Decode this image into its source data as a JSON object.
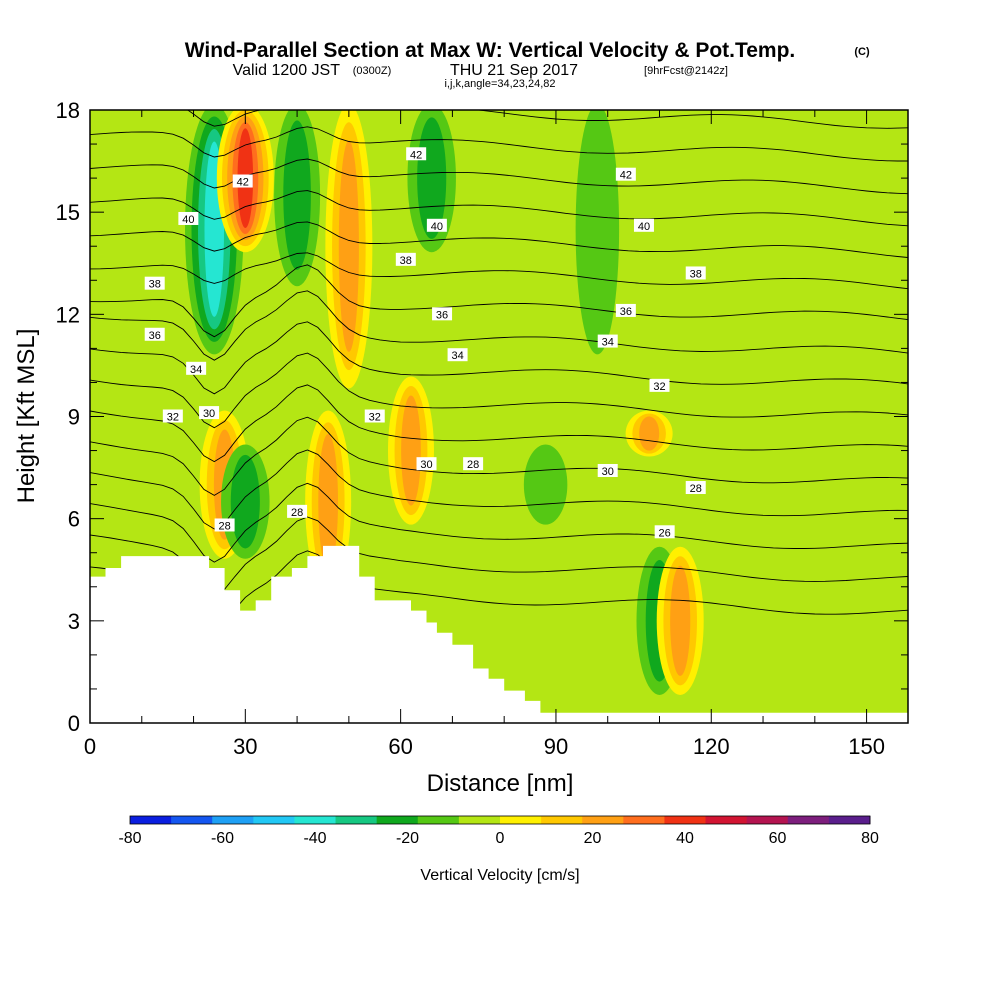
{
  "chart_data": {
    "type": "heatmap",
    "title": {
      "main": "Wind-Parallel Section at Max W: Vertical Velocity & Pot.Temp.",
      "copyright": "(C)",
      "valid_prefix": "Valid 1200 JST",
      "valid_z": "(0300Z)",
      "valid_date": "THU 21 Sep 2017",
      "forecast": "[9hrFcst@2142z]",
      "indices": "i,j,k,angle=34,23,24,82"
    },
    "xlabel": "Distance [nm]",
    "ylabel": "Height [Kft MSL]",
    "xlim": [
      0,
      158
    ],
    "ylim": [
      0,
      18
    ],
    "x_ticks": [
      0,
      30,
      60,
      90,
      120,
      150
    ],
    "y_ticks": [
      0,
      3,
      6,
      9,
      12,
      15,
      18
    ],
    "colorbar": {
      "label": "Vertical Velocity [cm/s]",
      "ticks": [
        -80,
        -60,
        -40,
        -20,
        0,
        20,
        40,
        60,
        80
      ],
      "bounds": [
        -80,
        80
      ],
      "colors": [
        "#0a1ee0",
        "#1456f0",
        "#1ea0f5",
        "#22c8f5",
        "#25e6d2",
        "#16c882",
        "#10a81e",
        "#55c814",
        "#b4e614",
        "#fff000",
        "#ffc800",
        "#ffa014",
        "#ff6e1e",
        "#f03214",
        "#d21432",
        "#b41450",
        "#7d1e7d",
        "#5a1e8c"
      ]
    },
    "vertical_velocity_features": [
      {
        "x": 24,
        "y_range": [
          11,
          18
        ],
        "w": -45
      },
      {
        "x": 30,
        "y_range": [
          14,
          18
        ],
        "w": 42
      },
      {
        "x": 40,
        "y_range": [
          13,
          18
        ],
        "w": -20
      },
      {
        "x": 26,
        "y_range": [
          5,
          9
        ],
        "w": 28
      },
      {
        "x": 30,
        "y_range": [
          5,
          8
        ],
        "w": -25
      },
      {
        "x": 46,
        "y_range": [
          4,
          9
        ],
        "w": 20
      },
      {
        "x": 50,
        "y_range": [
          10,
          18
        ],
        "w": 22
      },
      {
        "x": 66,
        "y_range": [
          14,
          18
        ],
        "w": -25
      },
      {
        "x": 62,
        "y_range": [
          6,
          10
        ],
        "w": 20
      },
      {
        "x": 98,
        "y_range": [
          11,
          18
        ],
        "w": -15
      },
      {
        "x": 110,
        "y_range": [
          1,
          5
        ],
        "w": -20
      },
      {
        "x": 114,
        "y_range": [
          1,
          5
        ],
        "w": 22
      },
      {
        "x": 108,
        "y_range": [
          8,
          9
        ],
        "w": 22
      },
      {
        "x": 88,
        "y_range": [
          6,
          8
        ],
        "w": -15
      }
    ],
    "theta_contour_labels": [
      {
        "text": "42",
        "x": 29.5,
        "y": 15.9
      },
      {
        "text": "42",
        "x": 63.0,
        "y": 16.7
      },
      {
        "text": "42",
        "x": 103.5,
        "y": 16.1
      },
      {
        "text": "40",
        "x": 19.0,
        "y": 14.8
      },
      {
        "text": "40",
        "x": 67.0,
        "y": 14.6
      },
      {
        "text": "40",
        "x": 107.0,
        "y": 14.6
      },
      {
        "text": "38",
        "x": 12.5,
        "y": 12.9
      },
      {
        "text": "38",
        "x": 61.0,
        "y": 13.6
      },
      {
        "text": "38",
        "x": 117.0,
        "y": 13.2
      },
      {
        "text": "36",
        "x": 12.5,
        "y": 11.4
      },
      {
        "text": "36",
        "x": 68.0,
        "y": 12.0
      },
      {
        "text": "36",
        "x": 103.5,
        "y": 12.1
      },
      {
        "text": "34",
        "x": 20.5,
        "y": 10.4
      },
      {
        "text": "34",
        "x": 71.0,
        "y": 10.8
      },
      {
        "text": "34",
        "x": 100.0,
        "y": 11.2
      },
      {
        "text": "32",
        "x": 16.0,
        "y": 9.0
      },
      {
        "text": "32",
        "x": 55.0,
        "y": 9.0
      },
      {
        "text": "32",
        "x": 110.0,
        "y": 9.9
      },
      {
        "text": "30",
        "x": 23.0,
        "y": 9.1
      },
      {
        "text": "30",
        "x": 65.0,
        "y": 7.6
      },
      {
        "text": "30",
        "x": 100.0,
        "y": 7.4
      },
      {
        "text": "28",
        "x": 26.0,
        "y": 5.8
      },
      {
        "text": "28",
        "x": 40.0,
        "y": 6.2
      },
      {
        "text": "28",
        "x": 74.0,
        "y": 7.6
      },
      {
        "text": "28",
        "x": 117.0,
        "y": 6.9
      },
      {
        "text": "26",
        "x": 111.0,
        "y": 5.6
      }
    ],
    "terrain_profile": [
      [
        0,
        4.3
      ],
      [
        3,
        4.3
      ],
      [
        3,
        4.55
      ],
      [
        6,
        4.55
      ],
      [
        6,
        4.9
      ],
      [
        23,
        4.9
      ],
      [
        23,
        4.55
      ],
      [
        26,
        4.55
      ],
      [
        26,
        3.9
      ],
      [
        29,
        3.9
      ],
      [
        29,
        3.3
      ],
      [
        32,
        3.3
      ],
      [
        32,
        3.6
      ],
      [
        35,
        3.6
      ],
      [
        35,
        4.3
      ],
      [
        39,
        4.3
      ],
      [
        39,
        4.55
      ],
      [
        42,
        4.55
      ],
      [
        42,
        4.9
      ],
      [
        45,
        4.9
      ],
      [
        45,
        5.2
      ],
      [
        52,
        5.2
      ],
      [
        52,
        4.3
      ],
      [
        55,
        4.3
      ],
      [
        55,
        3.6
      ],
      [
        62,
        3.6
      ],
      [
        62,
        3.3
      ],
      [
        65,
        3.3
      ],
      [
        65,
        2.95
      ],
      [
        67,
        2.95
      ],
      [
        67,
        2.65
      ],
      [
        70,
        2.65
      ],
      [
        70,
        2.3
      ],
      [
        74,
        2.3
      ],
      [
        74,
        1.6
      ],
      [
        77,
        1.6
      ],
      [
        77,
        1.3
      ],
      [
        80,
        1.3
      ],
      [
        80,
        0.95
      ],
      [
        84,
        0.95
      ],
      [
        84,
        0.65
      ],
      [
        87,
        0.65
      ],
      [
        87,
        0.3
      ],
      [
        158,
        0.3
      ],
      [
        158,
        0
      ]
    ]
  }
}
